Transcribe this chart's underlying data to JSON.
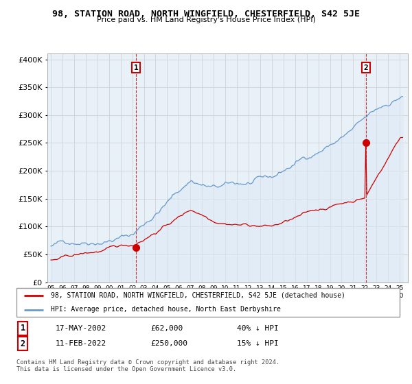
{
  "title": "98, STATION ROAD, NORTH WINGFIELD, CHESTERFIELD, S42 5JE",
  "subtitle": "Price paid vs. HM Land Registry's House Price Index (HPI)",
  "ylim": [
    0,
    410000
  ],
  "yticks": [
    0,
    50000,
    100000,
    150000,
    200000,
    250000,
    300000,
    350000,
    400000
  ],
  "ylabel_labels": [
    "£0",
    "£50K",
    "£100K",
    "£150K",
    "£200K",
    "£250K",
    "£300K",
    "£350K",
    "£400K"
  ],
  "legend_line1": "98, STATION ROAD, NORTH WINGFIELD, CHESTERFIELD, S42 5JE (detached house)",
  "legend_line2": "HPI: Average price, detached house, North East Derbyshire",
  "annotation1_label": "1",
  "annotation1_date": "17-MAY-2002",
  "annotation1_price": "£62,000",
  "annotation1_hpi": "40% ↓ HPI",
  "annotation1_year": 2002,
  "annotation1_month": 5,
  "annotation1_value": 62000,
  "annotation2_label": "2",
  "annotation2_date": "11-FEB-2022",
  "annotation2_price": "£250,000",
  "annotation2_hpi": "15% ↓ HPI",
  "annotation2_year": 2022,
  "annotation2_month": 2,
  "annotation2_value": 250000,
  "footnote1": "Contains HM Land Registry data © Crown copyright and database right 2024.",
  "footnote2": "This data is licensed under the Open Government Licence v3.0.",
  "red_color": "#cc0000",
  "blue_color": "#6699cc",
  "blue_fill": "#dce9f5",
  "annotation_box_color": "#cc0000",
  "background_color": "#ffffff",
  "grid_color": "#cccccc",
  "chart_bg": "#e8f0f8"
}
